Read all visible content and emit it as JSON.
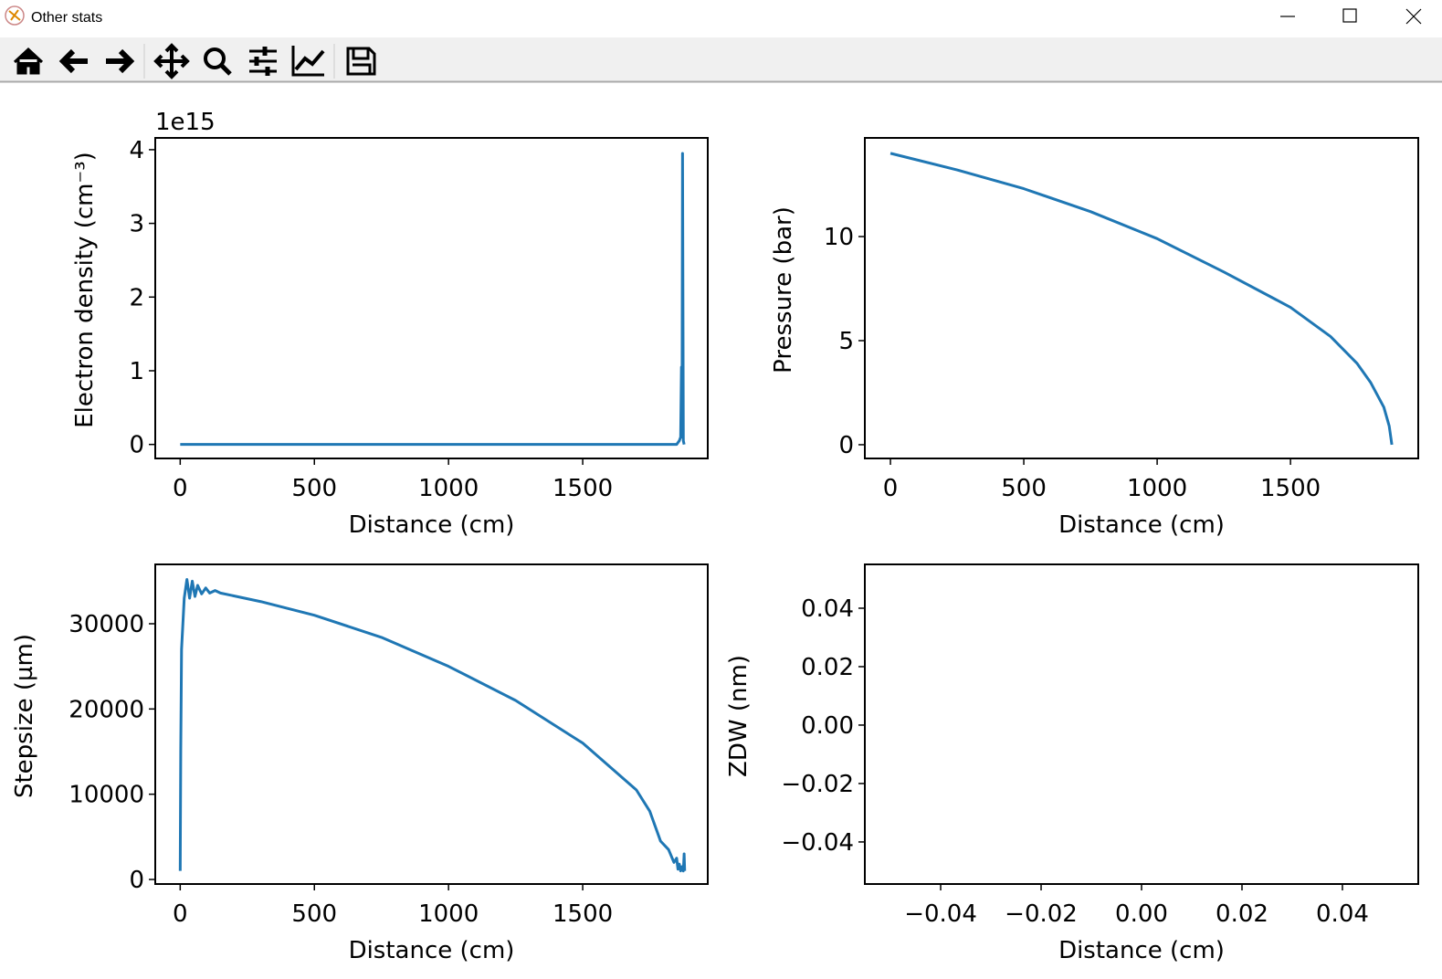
{
  "window": {
    "title": "Other stats"
  },
  "chart_data": [
    {
      "type": "line",
      "offset_text": "1e15",
      "x_label": "Distance (cm)",
      "y_label": "Electron density (cm⁻³)",
      "color": "#1f77b4",
      "x": [
        0,
        1850,
        1860,
        1865,
        1868,
        1870,
        1872,
        1875,
        1878
      ],
      "values": [
        0,
        0,
        50000000000000,
        100000000000000,
        1050000000000000,
        100000000000000,
        3950000000000000,
        50000000000000,
        0
      ],
      "xlim": [
        -93,
        1966
      ],
      "ylim": [
        -190000000000000,
        4160000000000000
      ],
      "xticks": [
        0,
        500,
        1000,
        1500
      ],
      "yticks": [
        0,
        {
          "value": 1000000000000000,
          "label": "1"
        },
        {
          "value": 2000000000000000,
          "label": "2"
        },
        {
          "value": 3000000000000000,
          "label": "3"
        },
        {
          "value": 4000000000000000,
          "label": "4"
        }
      ]
    },
    {
      "type": "line",
      "x_label": "Distance (cm)",
      "y_label": "Pressure (bar)",
      "color": "#1f77b4",
      "x": [
        0,
        250,
        500,
        750,
        1000,
        1250,
        1500,
        1650,
        1750,
        1800,
        1850,
        1870,
        1880
      ],
      "values": [
        14,
        13.2,
        12.3,
        11.2,
        9.9,
        8.3,
        6.6,
        5.2,
        3.9,
        3.0,
        1.8,
        0.9,
        0
      ],
      "xlim": [
        -96,
        1979
      ],
      "ylim": [
        -0.66,
        14.74
      ],
      "xticks": [
        0,
        500,
        1000,
        1500
      ],
      "yticks": [
        0,
        5,
        10
      ]
    },
    {
      "type": "line",
      "x_label": "Distance (cm)",
      "y_label": "Stepsize (µm)",
      "color": "#1f77b4",
      "x": [
        0,
        2,
        5,
        15,
        25,
        35,
        45,
        55,
        65,
        80,
        95,
        110,
        130,
        150,
        300,
        500,
        750,
        1000,
        1250,
        1500,
        1700,
        1750,
        1790,
        1820,
        1840,
        1850,
        1855,
        1860,
        1865,
        1870,
        1875,
        1878,
        1880
      ],
      "values": [
        1000,
        15000,
        27000,
        33000,
        35200,
        33000,
        35000,
        33200,
        34500,
        33500,
        34200,
        33600,
        33900,
        33600,
        32600,
        31000,
        28400,
        25000,
        21000,
        16000,
        10500,
        8000,
        4500,
        3500,
        2000,
        2500,
        1200,
        1800,
        1000,
        1500,
        1000,
        3000,
        1000
      ],
      "xlim": [
        -93,
        1966
      ],
      "ylim": [
        -536,
        36964
      ],
      "xticks": [
        0,
        500,
        1000,
        1500
      ],
      "yticks": [
        0,
        10000,
        20000,
        30000
      ]
    },
    {
      "type": "line",
      "x_label": "Distance (cm)",
      "y_label": "ZDW (nm)",
      "xlim": [
        -0.0551,
        0.0551
      ],
      "ylim": [
        -0.0544,
        0.055
      ],
      "xticks": [
        {
          "value": -0.04,
          "label": "−0.04"
        },
        {
          "value": -0.02,
          "label": "−0.02"
        },
        {
          "value": 0,
          "label": "0.00"
        },
        0.02,
        0.04
      ],
      "yticks": [
        {
          "value": -0.04,
          "label": "−0.04"
        },
        {
          "value": -0.02,
          "label": "−0.02"
        },
        {
          "value": 0,
          "label": "0.00"
        },
        0.02,
        0.04
      ]
    }
  ]
}
